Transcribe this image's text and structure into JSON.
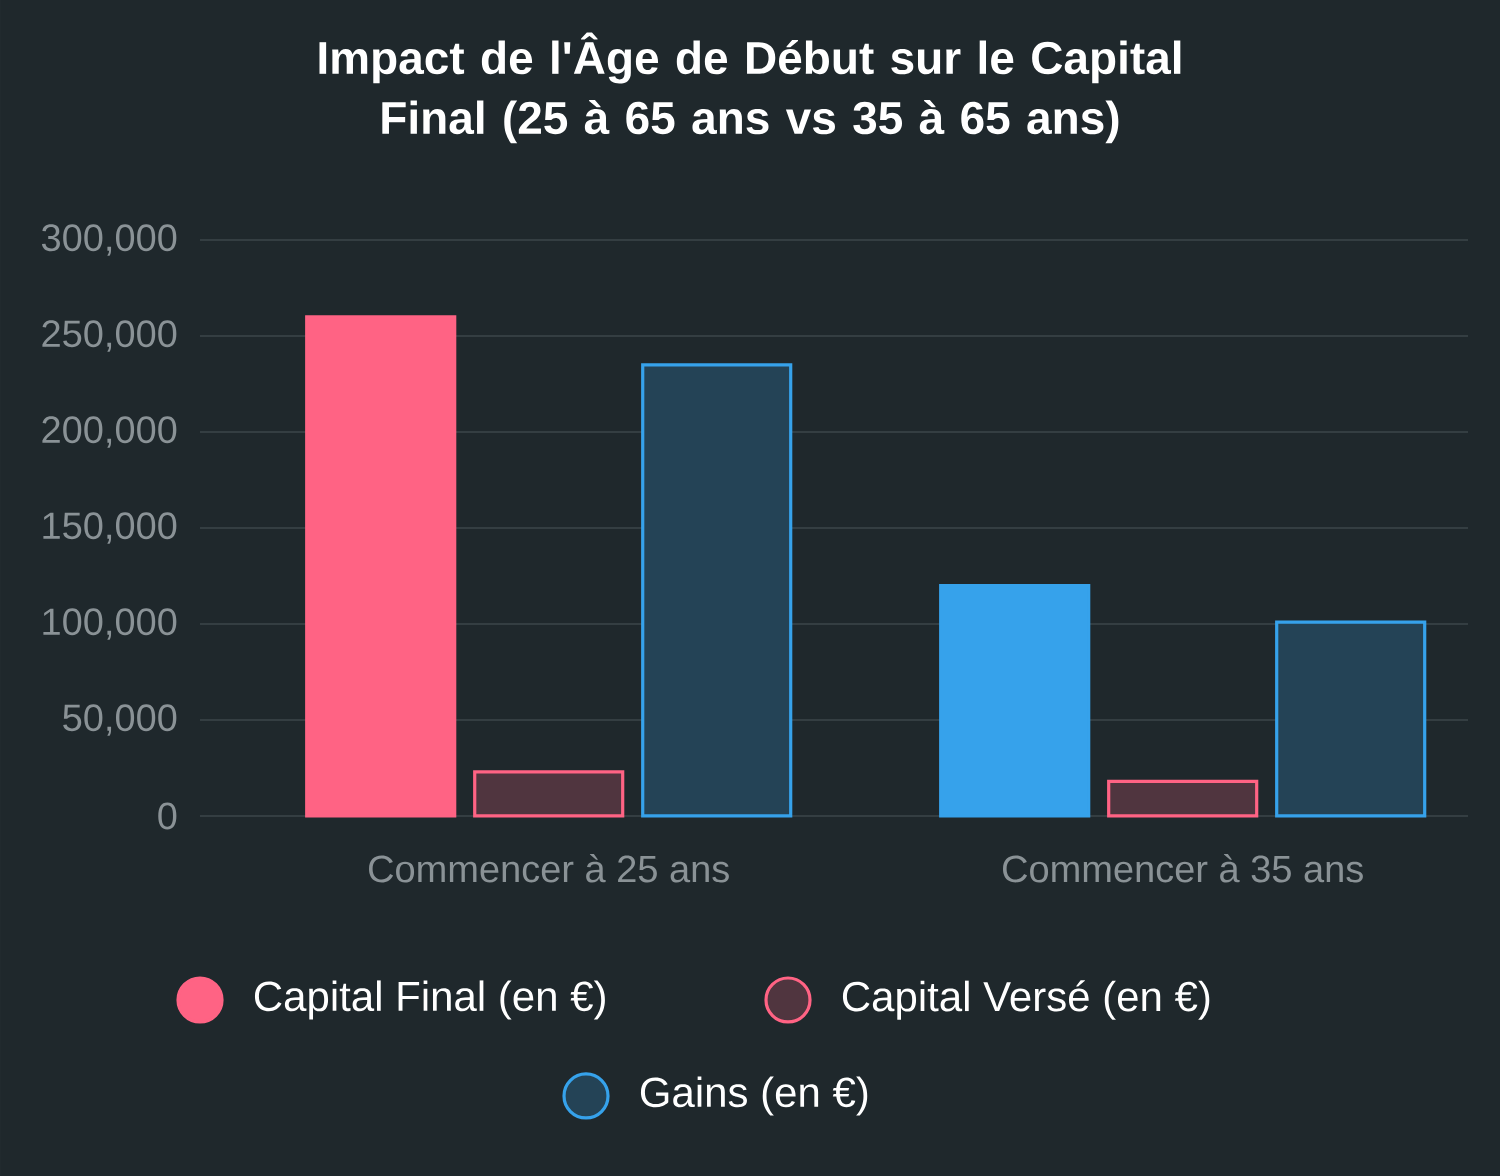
{
  "chart_data": {
    "type": "bar",
    "title": "Impact de l'Âge de Début sur le Capital Final (25 à 65 ans vs 35 à 65 ans)",
    "categories": [
      "Commencer à 25 ans",
      "Commencer à 35 ans"
    ],
    "series": [
      {
        "name": "Capital Final (en €)",
        "color": "#ff6384",
        "colors": [
          "#ff6384",
          "#36a2eb"
        ],
        "values": [
          260000,
          120000
        ]
      },
      {
        "name": "Capital Versé (en €)",
        "color": "#ff6384",
        "values": [
          23000,
          18000
        ]
      },
      {
        "name": "Gains (en €)",
        "color": "#36a2eb",
        "values": [
          235000,
          101000
        ]
      }
    ],
    "ylim": [
      0,
      300000
    ],
    "yticks": [
      {
        "value": 0,
        "label": "0"
      },
      {
        "value": 50000,
        "label": "50,000"
      },
      {
        "value": 100000,
        "label": "100,000"
      },
      {
        "value": 150000,
        "label": "150,000"
      },
      {
        "value": 200000,
        "label": "200,000"
      },
      {
        "value": 250000,
        "label": "250,000"
      },
      {
        "value": 300000,
        "label": "300,000"
      }
    ],
    "grid": "y",
    "legend": "bottom"
  }
}
